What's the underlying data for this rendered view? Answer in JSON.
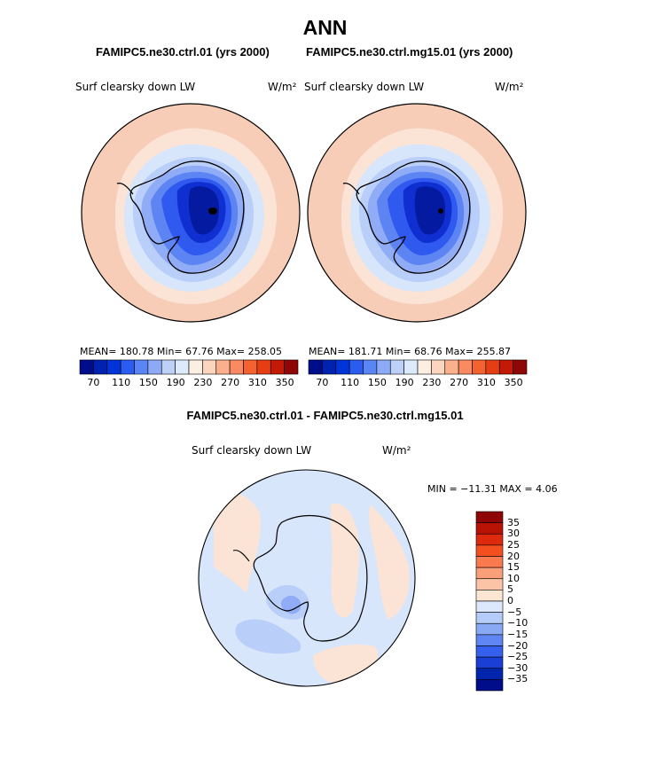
{
  "title": "ANN",
  "panels": [
    {
      "case_title": "FAMIPC5.ne30.ctrl.01 (yrs 2000)",
      "variable": "Surf clearsky down LW",
      "units": "W/m²",
      "stats": {
        "mean": "180.78",
        "min": "67.76",
        "max": "258.05"
      },
      "stats_text": "MEAN= 180.78   Min=   67.76   Max= 258.05"
    },
    {
      "case_title": "FAMIPC5.ne30.ctrl.mg15.01 (yrs 2000)",
      "variable": "Surf clearsky down LW",
      "units": "W/m²",
      "stats": {
        "mean": "181.71",
        "min": "68.76",
        "max": "255.87"
      },
      "stats_text": "MEAN= 181.71   Min=   68.76   Max= 255.87"
    }
  ],
  "top_colorbar": {
    "tick_labels": [
      "70",
      "110",
      "150",
      "190",
      "230",
      "270",
      "310",
      "350"
    ],
    "colors": [
      "#000d8a",
      "#0022b0",
      "#0033d8",
      "#2a5cf2",
      "#5a86f5",
      "#8daaf6",
      "#bcd0f8",
      "#ddeafc",
      "#fbeee2",
      "#fbd5bd",
      "#fab08d",
      "#f98a61",
      "#f4632f",
      "#e63e13",
      "#c21a07",
      "#8f0606"
    ]
  },
  "difference": {
    "title": "FAMIPC5.ne30.ctrl.01 - FAMIPC5.ne30.ctrl.mg15.01",
    "variable": "Surf clearsky down LW",
    "units": "W/m²",
    "stats": {
      "min": "-11.31",
      "max": "4.06"
    },
    "stats_text": "MIN = −11.31 MAX =    4.06",
    "colorbar": {
      "tick_labels": [
        "35",
        "30",
        "25",
        "20",
        "15",
        "10",
        "5",
        "0",
        "−5",
        "−10",
        "−15",
        "−20",
        "−25",
        "−30",
        "−35"
      ],
      "colors": [
        "#8f0606",
        "#b91306",
        "#dd2a0c",
        "#f2501f",
        "#f97a4e",
        "#fa9f7a",
        "#fbc4a7",
        "#fbe6d4",
        "#dce9fc",
        "#b4ccf8",
        "#8aa9f5",
        "#5f86f2",
        "#3560ed",
        "#1a3fd6",
        "#0025ad",
        "#000d8a"
      ]
    }
  },
  "map_colors": {
    "ocean_outer": "#f7cdb7",
    "ocean_warm": "#fbe4d6",
    "ocean_cool": "#d8e6fb",
    "shelf": "#b9cef8",
    "ice1": "#90acf6",
    "ice2": "#5c84f3",
    "ice3": "#2f59ef",
    "ice4": "#0f2fd0",
    "ice5": "#041aa0",
    "diff_neg": "#d8e6fb",
    "diff_pos": "#fbe4d6",
    "diff_neg2": "#b9cef8",
    "diff_neg3": "#90acf6"
  }
}
